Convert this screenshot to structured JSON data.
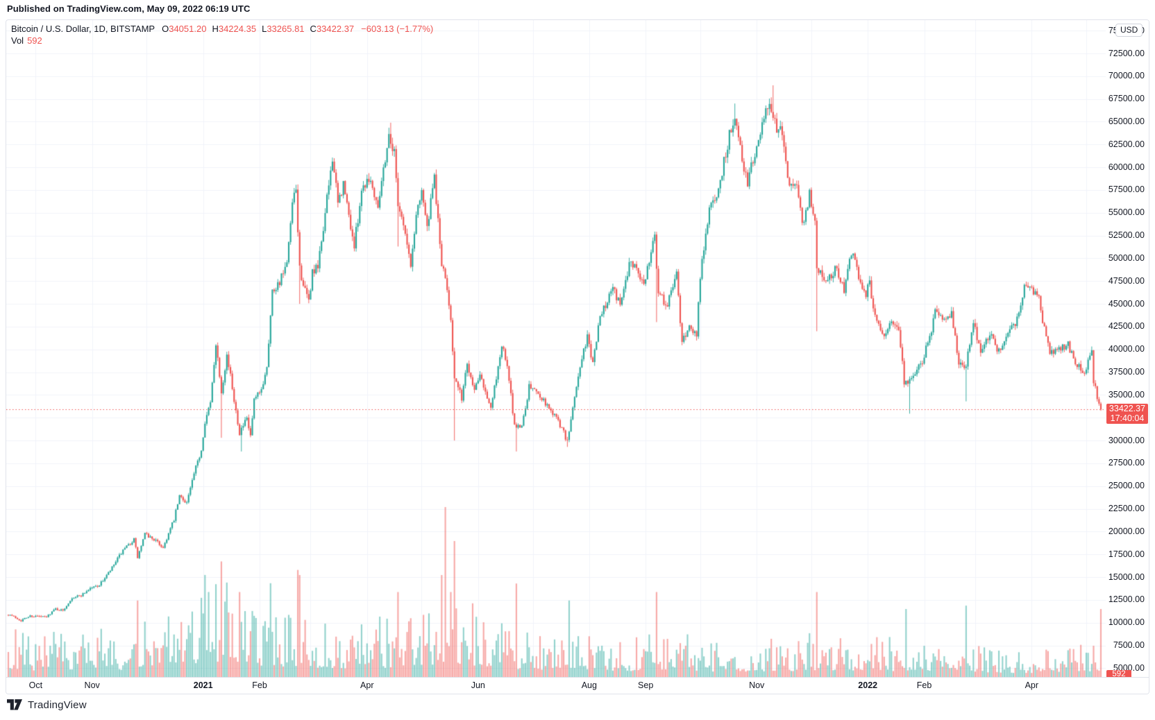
{
  "header": {
    "published_line": "Published on TradingView.com, May 09, 2022 06:19 UTC"
  },
  "legend": {
    "symbol_line": "Bitcoin / U.S. Dollar, 1D, BITSTAMP",
    "o_label": "O",
    "o_value": "34051.20",
    "h_label": "H",
    "h_value": "34224.35",
    "l_label": "L",
    "l_value": "33265.81",
    "c_label": "C",
    "c_value": "33422.37",
    "change": "−603.13 (−1.77%)",
    "vol_label": "Vol",
    "vol_value": "592"
  },
  "price_axis": {
    "currency_button": "USD",
    "ticks": [
      "75000.00",
      "72500.00",
      "70000.00",
      "67500.00",
      "65000.00",
      "62500.00",
      "60000.00",
      "57500.00",
      "55000.00",
      "52500.00",
      "50000.00",
      "47500.00",
      "45000.00",
      "42500.00",
      "40000.00",
      "37500.00",
      "35000.00",
      "30000.00",
      "27500.00",
      "25000.00",
      "22500.00",
      "20000.00",
      "17500.00",
      "15000.00",
      "12500.00",
      "10000.00",
      "7500.00",
      "5000.00"
    ],
    "last_price_label": "33422.37",
    "countdown": "17:40:04",
    "volume_label": "592"
  },
  "time_axis": {
    "labels": [
      {
        "text": "Oct",
        "date": "2020-10-01",
        "bold": false
      },
      {
        "text": "Nov",
        "date": "2020-11-01",
        "bold": false
      },
      {
        "text": "2021",
        "date": "2021-01-01",
        "bold": true
      },
      {
        "text": "Feb",
        "date": "2021-02-01",
        "bold": false
      },
      {
        "text": "Apr",
        "date": "2021-04-01",
        "bold": false
      },
      {
        "text": "Jun",
        "date": "2021-06-01",
        "bold": false
      },
      {
        "text": "Aug",
        "date": "2021-08-01",
        "bold": false
      },
      {
        "text": "Sep",
        "date": "2021-09-01",
        "bold": false
      },
      {
        "text": "Nov",
        "date": "2021-11-01",
        "bold": false
      },
      {
        "text": "2022",
        "date": "2022-01-01",
        "bold": true
      },
      {
        "text": "Feb",
        "date": "2022-02-01",
        "bold": false
      },
      {
        "text": "Apr",
        "date": "2022-04-01",
        "bold": false
      }
    ]
  },
  "footer": {
    "brand": "TradingView"
  },
  "colors": {
    "up": "#26a69a",
    "down": "#ef5350",
    "grid": "#f0f3fa",
    "text": "#131722",
    "label_bg": "#ef5350",
    "border": "#e0e3eb",
    "volume_alpha": 0.5,
    "price_line": "#ef5350"
  },
  "chart_data": {
    "type": "candlestick",
    "symbol": "Bitcoin / U.S. Dollar",
    "exchange": "BITSTAMP",
    "interval": "1D",
    "visible_time_range": [
      "2020-09-16",
      "2022-05-09"
    ],
    "visible_price_range": [
      4000,
      76200
    ],
    "price_tick_step": 2500,
    "grid": true,
    "last_bar": {
      "date": "2022-05-09",
      "open": 34051.2,
      "high": 34224.35,
      "low": 33265.81,
      "close": 33422.37,
      "volume": 592,
      "change": -603.13,
      "change_pct": -1.77
    },
    "last_price_line": 33422.37,
    "render_seed": 7,
    "close_anchors": [
      [
        "2020-09-16",
        10950
      ],
      [
        "2020-09-21",
        10450
      ],
      [
        "2020-09-23",
        10250
      ],
      [
        "2020-09-28",
        10750
      ],
      [
        "2020-10-04",
        10670
      ],
      [
        "2020-10-07",
        10600
      ],
      [
        "2020-10-09",
        11050
      ],
      [
        "2020-10-12",
        11530
      ],
      [
        "2020-10-16",
        11320
      ],
      [
        "2020-10-21",
        12780
      ],
      [
        "2020-10-26",
        13010
      ],
      [
        "2020-10-31",
        13800
      ],
      [
        "2020-11-05",
        14140
      ],
      [
        "2020-11-11",
        15700
      ],
      [
        "2020-11-17",
        17650
      ],
      [
        "2020-11-24",
        19150
      ],
      [
        "2020-11-26",
        17150
      ],
      [
        "2020-11-30",
        19700
      ],
      [
        "2020-12-05",
        19160
      ],
      [
        "2020-12-10",
        18250
      ],
      [
        "2020-12-16",
        21310
      ],
      [
        "2020-12-19",
        23860
      ],
      [
        "2020-12-23",
        23240
      ],
      [
        "2020-12-27",
        26280
      ],
      [
        "2020-12-31",
        29000
      ],
      [
        "2021-01-02",
        32200
      ],
      [
        "2021-01-05",
        34000
      ],
      [
        "2021-01-08",
        40800
      ],
      [
        "2021-01-11",
        35450
      ],
      [
        "2021-01-14",
        39400
      ],
      [
        "2021-01-17",
        35800
      ],
      [
        "2021-01-21",
        30900
      ],
      [
        "2021-01-25",
        32300
      ],
      [
        "2021-01-27",
        30400
      ],
      [
        "2021-01-29",
        34300
      ],
      [
        "2021-02-02",
        35500
      ],
      [
        "2021-02-05",
        38300
      ],
      [
        "2021-02-08",
        46400
      ],
      [
        "2021-02-12",
        47500
      ],
      [
        "2021-02-16",
        49200
      ],
      [
        "2021-02-19",
        55900
      ],
      [
        "2021-02-21",
        57400
      ],
      [
        "2021-02-23",
        48900
      ],
      [
        "2021-02-26",
        46300
      ],
      [
        "2021-02-28",
        45200
      ],
      [
        "2021-03-02",
        48500
      ],
      [
        "2021-03-05",
        48900
      ],
      [
        "2021-03-09",
        54900
      ],
      [
        "2021-03-13",
        61200
      ],
      [
        "2021-03-16",
        55900
      ],
      [
        "2021-03-19",
        58100
      ],
      [
        "2021-03-25",
        51300
      ],
      [
        "2021-03-29",
        57600
      ],
      [
        "2021-04-02",
        59000
      ],
      [
        "2021-04-07",
        56000
      ],
      [
        "2021-04-10",
        59800
      ],
      [
        "2021-04-13",
        63500
      ],
      [
        "2021-04-16",
        61600
      ],
      [
        "2021-04-18",
        56200
      ],
      [
        "2021-04-21",
        53800
      ],
      [
        "2021-04-25",
        49100
      ],
      [
        "2021-04-28",
        54800
      ],
      [
        "2021-05-01",
        57800
      ],
      [
        "2021-05-04",
        53200
      ],
      [
        "2021-05-08",
        58800
      ],
      [
        "2021-05-12",
        49300
      ],
      [
        "2021-05-15",
        46700
      ],
      [
        "2021-05-17",
        43500
      ],
      [
        "2021-05-19",
        36750
      ],
      [
        "2021-05-23",
        34700
      ],
      [
        "2021-05-26",
        38500
      ],
      [
        "2021-05-30",
        35600
      ],
      [
        "2021-06-02",
        37600
      ],
      [
        "2021-06-05",
        35500
      ],
      [
        "2021-06-08",
        33400
      ],
      [
        "2021-06-14",
        40500
      ],
      [
        "2021-06-17",
        38100
      ],
      [
        "2021-06-21",
        31600
      ],
      [
        "2021-06-25",
        31600
      ],
      [
        "2021-06-29",
        35900
      ],
      [
        "2021-07-04",
        35300
      ],
      [
        "2021-07-09",
        33800
      ],
      [
        "2021-07-13",
        32800
      ],
      [
        "2021-07-17",
        31400
      ],
      [
        "2021-07-20",
        29800
      ],
      [
        "2021-07-23",
        33600
      ],
      [
        "2021-07-26",
        37200
      ],
      [
        "2021-07-31",
        41500
      ],
      [
        "2021-08-03",
        38200
      ],
      [
        "2021-08-06",
        42800
      ],
      [
        "2021-08-11",
        45600
      ],
      [
        "2021-08-14",
        47100
      ],
      [
        "2021-08-18",
        44700
      ],
      [
        "2021-08-23",
        49500
      ],
      [
        "2021-08-27",
        49100
      ],
      [
        "2021-08-31",
        47100
      ],
      [
        "2021-09-03",
        50000
      ],
      [
        "2021-09-06",
        52700
      ],
      [
        "2021-09-08",
        46100
      ],
      [
        "2021-09-13",
        44900
      ],
      [
        "2021-09-18",
        48300
      ],
      [
        "2021-09-21",
        40700
      ],
      [
        "2021-09-25",
        42700
      ],
      [
        "2021-09-29",
        41500
      ],
      [
        "2021-10-01",
        48200
      ],
      [
        "2021-10-06",
        55300
      ],
      [
        "2021-10-11",
        57500
      ],
      [
        "2021-10-15",
        61700
      ],
      [
        "2021-10-20",
        66000
      ],
      [
        "2021-10-24",
        60900
      ],
      [
        "2021-10-27",
        58500
      ],
      [
        "2021-11-02",
        63200
      ],
      [
        "2021-11-08",
        67550
      ],
      [
        "2021-11-10",
        64900
      ],
      [
        "2021-11-15",
        63600
      ],
      [
        "2021-11-19",
        58100
      ],
      [
        "2021-11-23",
        57600
      ],
      [
        "2021-11-26",
        53800
      ],
      [
        "2021-11-30",
        57000
      ],
      [
        "2021-12-03",
        53600
      ],
      [
        "2021-12-04",
        49200
      ],
      [
        "2021-12-09",
        47500
      ],
      [
        "2021-12-15",
        48900
      ],
      [
        "2021-12-19",
        46700
      ],
      [
        "2021-12-23",
        50800
      ],
      [
        "2021-12-28",
        47500
      ],
      [
        "2021-12-31",
        46200
      ],
      [
        "2022-01-02",
        47300
      ],
      [
        "2022-01-05",
        43400
      ],
      [
        "2022-01-10",
        41800
      ],
      [
        "2022-01-14",
        43100
      ],
      [
        "2022-01-18",
        42400
      ],
      [
        "2022-01-21",
        36400
      ],
      [
        "2022-01-24",
        36650
      ],
      [
        "2022-01-28",
        37800
      ],
      [
        "2022-01-31",
        38500
      ],
      [
        "2022-02-04",
        41500
      ],
      [
        "2022-02-07",
        44000
      ],
      [
        "2022-02-10",
        43500
      ],
      [
        "2022-02-16",
        43900
      ],
      [
        "2022-02-20",
        38400
      ],
      [
        "2022-02-24",
        38300
      ],
      [
        "2022-02-28",
        43200
      ],
      [
        "2022-03-04",
        39400
      ],
      [
        "2022-03-09",
        41900
      ],
      [
        "2022-03-14",
        39700
      ],
      [
        "2022-03-18",
        41800
      ],
      [
        "2022-03-22",
        42400
      ],
      [
        "2022-03-25",
        44300
      ],
      [
        "2022-03-29",
        47450
      ],
      [
        "2022-04-02",
        46300
      ],
      [
        "2022-04-05",
        45500
      ],
      [
        "2022-04-08",
        42300
      ],
      [
        "2022-04-11",
        39500
      ],
      [
        "2022-04-14",
        39900
      ],
      [
        "2022-04-18",
        40400
      ],
      [
        "2022-04-21",
        40500
      ],
      [
        "2022-04-26",
        38100
      ],
      [
        "2022-04-30",
        37650
      ],
      [
        "2022-05-04",
        39700
      ],
      [
        "2022-05-05",
        36550
      ],
      [
        "2022-05-08",
        34051.2
      ],
      [
        "2022-05-09",
        33422.37
      ]
    ],
    "wick_events": [
      [
        "2021-01-11",
        "low",
        30300
      ],
      [
        "2021-01-22",
        "low",
        28800
      ],
      [
        "2021-02-23",
        "low",
        45000
      ],
      [
        "2021-04-14",
        "high",
        64895
      ],
      [
        "2021-04-18",
        "low",
        51300
      ],
      [
        "2021-05-19",
        "low",
        30000
      ],
      [
        "2021-06-22",
        "low",
        28800
      ],
      [
        "2021-07-20",
        "low",
        29300
      ],
      [
        "2021-09-07",
        "low",
        43000
      ],
      [
        "2021-10-20",
        "high",
        67000
      ],
      [
        "2021-11-10",
        "high",
        69000
      ],
      [
        "2021-12-04",
        "low",
        42000
      ],
      [
        "2022-01-24",
        "low",
        32950
      ],
      [
        "2022-02-24",
        "low",
        34300
      ]
    ],
    "volume_anchors": [
      [
        "2020-09-16",
        0.55
      ],
      [
        "2020-11-01",
        0.5
      ],
      [
        "2020-12-15",
        0.65
      ],
      [
        "2021-01-05",
        1.0
      ],
      [
        "2021-01-29",
        0.8
      ],
      [
        "2021-02-23",
        0.85
      ],
      [
        "2021-03-15",
        0.55
      ],
      [
        "2021-04-18",
        0.7
      ],
      [
        "2021-05-19",
        0.95
      ],
      [
        "2021-06-10",
        0.65
      ],
      [
        "2021-07-21",
        0.5
      ],
      [
        "2021-08-15",
        0.42
      ],
      [
        "2021-09-07",
        0.55
      ],
      [
        "2021-10-15",
        0.4
      ],
      [
        "2021-11-10",
        0.45
      ],
      [
        "2021-12-04",
        0.5
      ],
      [
        "2022-01-22",
        0.45
      ],
      [
        "2022-02-24",
        0.42
      ],
      [
        "2022-03-20",
        0.32
      ],
      [
        "2022-04-10",
        0.32
      ],
      [
        "2022-05-09",
        0.45
      ]
    ],
    "volume_spikes": [
      [
        "2020-11-26",
        0.45
      ],
      [
        "2021-01-04",
        0.5
      ],
      [
        "2021-01-11",
        0.68
      ],
      [
        "2021-01-21",
        0.5
      ],
      [
        "2021-02-23",
        0.6
      ],
      [
        "2021-04-18",
        0.5
      ],
      [
        "2021-05-12",
        0.6
      ],
      [
        "2021-05-14",
        1.0
      ],
      [
        "2021-05-17",
        0.5
      ],
      [
        "2021-05-19",
        0.8
      ],
      [
        "2021-06-22",
        0.55
      ],
      [
        "2021-07-21",
        0.45
      ],
      [
        "2021-09-07",
        0.5
      ],
      [
        "2021-12-04",
        0.5
      ],
      [
        "2022-01-22",
        0.4
      ],
      [
        "2022-02-24",
        0.42
      ],
      [
        "2022-05-09",
        0.4
      ]
    ]
  }
}
